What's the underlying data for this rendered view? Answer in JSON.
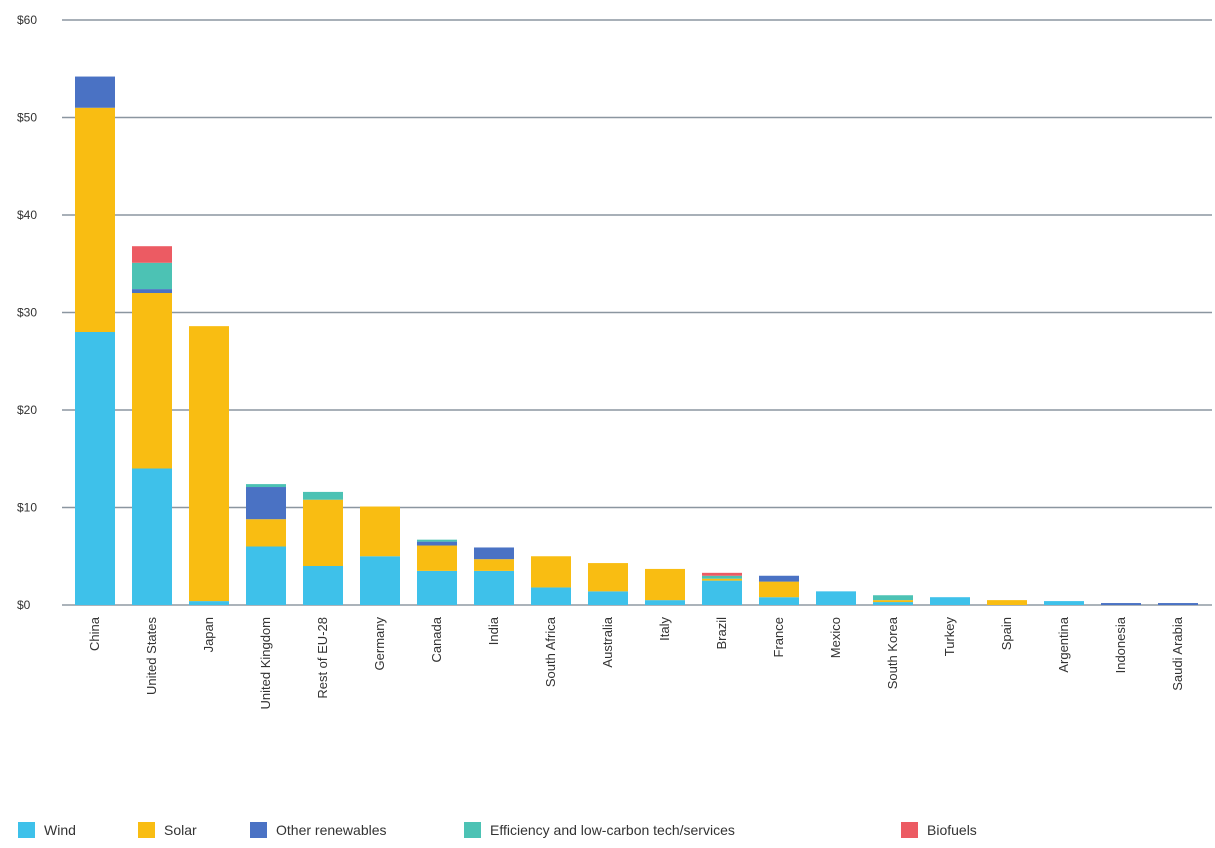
{
  "chart_data": {
    "type": "bar",
    "stacked": true,
    "title": "",
    "xlabel": "",
    "ylabel": "",
    "ylim": [
      0,
      60
    ],
    "y_ticks": [
      0,
      10,
      20,
      30,
      40,
      50,
      60
    ],
    "y_tick_labels": [
      "$0",
      "$10",
      "$20",
      "$30",
      "$40",
      "$50",
      "$60"
    ],
    "grid": "horizontal",
    "legend_position": "bottom",
    "categories": [
      "China",
      "United States",
      "Japan",
      "United Kingdom",
      "Rest of EU-28",
      "Germany",
      "Canada",
      "India",
      "South Africa",
      "Australia",
      "Italy",
      "Brazil",
      "France",
      "Mexico",
      "South Korea",
      "Turkey",
      "Spain",
      "Argentina",
      "Indonesia",
      "Saudi Arabia"
    ],
    "series": [
      {
        "name": "Wind",
        "color": "#3ec1ea",
        "values": [
          28.0,
          14.0,
          0.4,
          6.0,
          4.0,
          5.0,
          3.5,
          3.5,
          1.8,
          1.4,
          0.5,
          2.5,
          0.8,
          1.4,
          0.3,
          0.8,
          0.0,
          0.4,
          0.0,
          0.0
        ]
      },
      {
        "name": "Solar",
        "color": "#f9bd12",
        "values": [
          23.0,
          18.0,
          28.2,
          2.8,
          6.8,
          5.1,
          2.6,
          1.2,
          3.2,
          2.9,
          3.2,
          0.2,
          1.6,
          0.0,
          0.2,
          0.0,
          0.5,
          0.0,
          0.0,
          0.0
        ]
      },
      {
        "name": "Other renewables",
        "color": "#4a72c4",
        "values": [
          3.2,
          0.4,
          0.0,
          3.3,
          0.0,
          0.0,
          0.4,
          1.2,
          0.0,
          0.0,
          0.0,
          0.0,
          0.6,
          0.0,
          0.0,
          0.0,
          0.0,
          0.0,
          0.2,
          0.2
        ]
      },
      {
        "name": "Efficiency and low-carbon tech/services",
        "color": "#4cc2b4",
        "values": [
          0.0,
          2.7,
          0.0,
          0.3,
          0.8,
          0.0,
          0.2,
          0.0,
          0.0,
          0.0,
          0.0,
          0.3,
          0.0,
          0.0,
          0.5,
          0.0,
          0.0,
          0.0,
          0.0,
          0.0
        ]
      },
      {
        "name": "Biofuels",
        "color": "#ec5b63",
        "values": [
          0.0,
          1.7,
          0.0,
          0.0,
          0.0,
          0.0,
          0.0,
          0.0,
          0.0,
          0.0,
          0.0,
          0.3,
          0.0,
          0.0,
          0.0,
          0.0,
          0.0,
          0.0,
          0.0,
          0.0
        ]
      }
    ]
  }
}
